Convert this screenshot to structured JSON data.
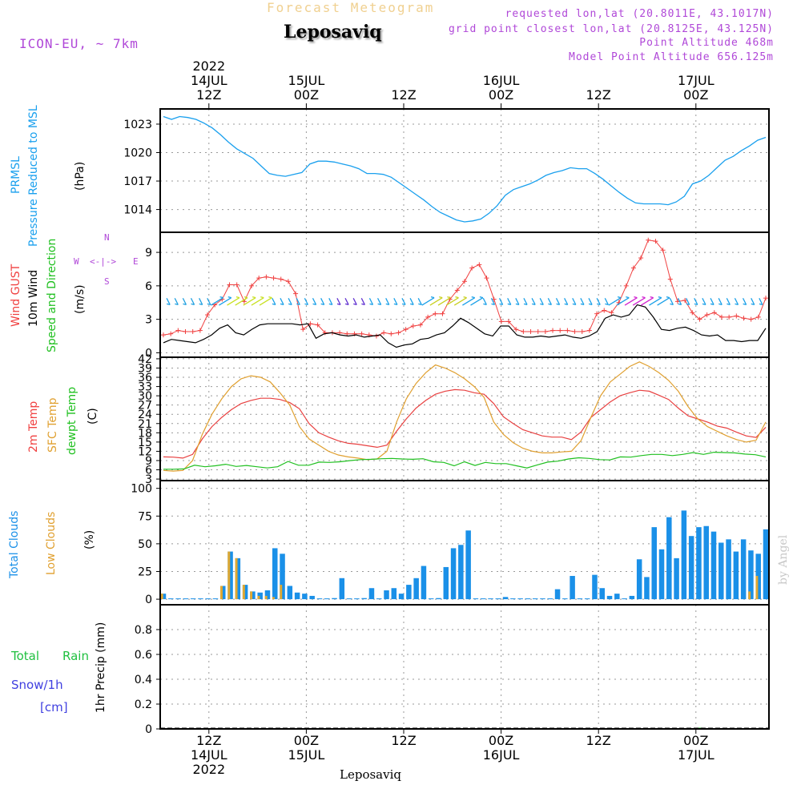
{
  "header": {
    "product_title": "Forecast Meteogram",
    "location": "Leposaviq",
    "model": "ICON-EU, ~ 7km",
    "requested": "requested lon,lat (20.8011E, 43.1017N)",
    "gridpoint": "grid point closest lon,lat (20.8125E, 43.125N)",
    "point_alt": "Point Altitude 468m",
    "model_alt": "Model Point Altitude 656.125m"
  },
  "footer": {
    "location": "Leposaviq"
  },
  "watermark": "by Angel",
  "time_axis": {
    "hours": 75,
    "hour_start": 6,
    "top_ticks": [
      {
        "h": 12,
        "lines": [
          "2022",
          "14JUL",
          "12Z"
        ]
      },
      {
        "h": 24,
        "lines": [
          "15JUL",
          "00Z"
        ]
      },
      {
        "h": 36,
        "lines": [
          "12Z"
        ]
      },
      {
        "h": 48,
        "lines": [
          "16JUL",
          "00Z"
        ]
      },
      {
        "h": 60,
        "lines": [
          "12Z"
        ]
      },
      {
        "h": 72,
        "lines": [
          "17JUL",
          "00Z"
        ]
      }
    ],
    "bottom_ticks": [
      {
        "h": 12,
        "lines": [
          "12Z",
          "14JUL",
          "2022"
        ]
      },
      {
        "h": 24,
        "lines": [
          "00Z",
          "15JUL"
        ]
      },
      {
        "h": 36,
        "lines": [
          "12Z"
        ]
      },
      {
        "h": 48,
        "lines": [
          "00Z",
          "16JUL"
        ]
      },
      {
        "h": 60,
        "lines": [
          "12Z"
        ]
      },
      {
        "h": 72,
        "lines": [
          "00Z",
          "17JUL"
        ]
      }
    ]
  },
  "panel_labels": {
    "pressure": [
      "PRMSL",
      "Pressure Reduced to MSL",
      "(hPa)"
    ],
    "wind": [
      "Wind GUST",
      "10m Wind",
      "Speed and Direction",
      "(m/s)"
    ],
    "compass": {
      "n": "N",
      "s": "S",
      "w": "W",
      "e": "E",
      "arrow": "<-|->"
    },
    "temp": [
      "2m Temp",
      "SFC Temp",
      "dewpt Temp",
      "(C)"
    ],
    "clouds": [
      "Total Clouds",
      "Low Clouds",
      "(%)"
    ],
    "precip": [
      "Total",
      "Rain",
      "Snow/1h",
      "[cm]",
      "1hr Precip (mm)"
    ]
  },
  "colors": {
    "pressure": "#1aa0ee",
    "gust": "#f04040",
    "wind": "#000000",
    "t2m": "#e84040",
    "tsfc": "#e0a030",
    "dewpt": "#20c020",
    "total_cloud": "#1a90e8",
    "low_cloud": "#e0a830",
    "total_label": "#20c040",
    "snow_label": "#4040e0"
  },
  "chart_data": [
    {
      "type": "line",
      "title": "PRMSL Pressure Reduced to MSL",
      "ylabel": "(hPa)",
      "yticks": [
        1014,
        1017,
        1020,
        1023
      ],
      "ylim": [
        1011.6,
        1024.6
      ],
      "series": [
        {
          "name": "PRMSL",
          "values": [
            1023.8,
            1023.5,
            1023.8,
            1023.7,
            1023.5,
            1023.1,
            1022.6,
            1021.9,
            1021.1,
            1020.4,
            1019.9,
            1019.4,
            1018.6,
            1017.8,
            1017.6,
            1017.5,
            1017.7,
            1017.9,
            1018.8,
            1019.1,
            1019.1,
            1019.0,
            1018.8,
            1018.6,
            1018.3,
            1017.8,
            1017.8,
            1017.7,
            1017.4,
            1016.8,
            1016.2,
            1015.6,
            1015.0,
            1014.3,
            1013.7,
            1013.3,
            1012.9,
            1012.7,
            1012.8,
            1013.0,
            1013.6,
            1014.4,
            1015.5,
            1016.1,
            1016.4,
            1016.7,
            1017.1,
            1017.6,
            1017.9,
            1018.1,
            1018.4,
            1018.3,
            1018.3,
            1017.8,
            1017.2,
            1016.5,
            1015.8,
            1015.2,
            1014.7,
            1014.6,
            1014.6,
            1014.6,
            1014.5,
            1014.8,
            1015.4,
            1016.7,
            1017.0,
            1017.6,
            1018.4,
            1019.2,
            1019.6,
            1020.2,
            1020.7,
            1021.3,
            1021.6
          ]
        }
      ]
    },
    {
      "type": "line",
      "title": "Wind GUST / 10m Wind Speed and Direction",
      "ylabel": "(m/s)",
      "yticks": [
        0,
        3,
        6,
        9
      ],
      "ylim": [
        -0.4,
        10.8
      ],
      "series": [
        {
          "name": "Wind GUST",
          "values": [
            1.6,
            1.7,
            2.0,
            1.9,
            1.9,
            2.0,
            3.4,
            4.3,
            4.8,
            6.1,
            6.1,
            4.6,
            6.0,
            6.7,
            6.8,
            6.7,
            6.6,
            6.4,
            5.3,
            2.1,
            2.6,
            2.5,
            1.8,
            1.8,
            1.8,
            1.7,
            1.7,
            1.7,
            1.6,
            1.5,
            1.8,
            1.7,
            1.8,
            2.1,
            2.4,
            2.5,
            3.2,
            3.5,
            3.5,
            4.8,
            5.6,
            6.4,
            7.6,
            7.9,
            6.7,
            4.8,
            2.8,
            2.8,
            2.1,
            1.9,
            1.9,
            1.9,
            1.9,
            2.0,
            2.0,
            2.0,
            1.9,
            1.9,
            2.0,
            3.5,
            3.8,
            3.6,
            4.5,
            6.0,
            7.6,
            8.5,
            10.1,
            10.0,
            9.2,
            6.6,
            4.6,
            4.7,
            3.6,
            3.0,
            3.4,
            3.6,
            3.2,
            3.2,
            3.3,
            3.1,
            3.0,
            3.2,
            4.9
          ]
        },
        {
          "name": "10m Wind",
          "values": [
            0.9,
            1.2,
            1.1,
            1.0,
            0.9,
            1.2,
            1.6,
            2.2,
            2.5,
            1.8,
            1.6,
            2.1,
            2.5,
            2.6,
            2.6,
            2.6,
            2.6,
            2.5,
            2.6,
            1.3,
            1.7,
            1.8,
            1.6,
            1.5,
            1.6,
            1.4,
            1.5,
            1.6,
            0.9,
            0.5,
            0.7,
            0.8,
            1.2,
            1.3,
            1.6,
            1.8,
            2.4,
            3.1,
            2.7,
            2.2,
            1.7,
            1.5,
            2.4,
            2.4,
            1.6,
            1.4,
            1.4,
            1.5,
            1.4,
            1.5,
            1.6,
            1.4,
            1.3,
            1.5,
            1.9,
            3.1,
            3.4,
            3.2,
            3.4,
            4.3,
            4.1,
            3.2,
            2.1,
            2.0,
            2.2,
            2.3,
            2.0,
            1.6,
            1.5,
            1.6,
            1.1,
            1.1,
            1.0,
            1.1,
            1.1,
            2.2
          ]
        }
      ]
    },
    {
      "type": "line",
      "title": "2m Temp / SFC Temp / dewpt Temp",
      "ylabel": "(C)",
      "yticks": [
        3,
        6,
        9,
        12,
        15,
        18,
        21,
        24,
        27,
        30,
        33,
        36,
        39,
        42
      ],
      "ylim": [
        2.5,
        42.5
      ],
      "series": [
        {
          "name": "2m Temp",
          "values": [
            10.2,
            10.1,
            9.8,
            11.0,
            16.0,
            20.0,
            23.0,
            25.5,
            27.5,
            28.5,
            29.2,
            29.2,
            28.8,
            27.8,
            25.8,
            21.0,
            18.0,
            16.6,
            15.4,
            14.6,
            14.3,
            13.8,
            13.3,
            14.0,
            18.5,
            22.5,
            26.0,
            28.5,
            30.5,
            31.5,
            32.0,
            31.8,
            31.0,
            30.5,
            27.5,
            23.2,
            21.0,
            19.0,
            18.0,
            17.0,
            16.6,
            16.6,
            15.8,
            18.3,
            23.0,
            25.5,
            28.0,
            30.0,
            31.0,
            31.8,
            31.5,
            30.2,
            28.8,
            26.0,
            23.5,
            22.5,
            21.5,
            20.2,
            19.5,
            18.2,
            17.0,
            16.5,
            19.8
          ]
        },
        {
          "name": "SFC Temp",
          "values": [
            5.8,
            5.6,
            5.8,
            9.0,
            17.5,
            24.0,
            29.0,
            33.0,
            35.5,
            36.5,
            36.0,
            34.5,
            31.0,
            27.0,
            20.0,
            16.0,
            14.0,
            12.0,
            10.8,
            10.2,
            9.8,
            9.3,
            9.5,
            12.0,
            21.5,
            29.0,
            34.0,
            37.5,
            40.0,
            39.0,
            37.5,
            35.5,
            33.0,
            29.5,
            21.5,
            17.5,
            14.8,
            13.0,
            12.0,
            11.5,
            11.5,
            11.8,
            12.0,
            15.5,
            23.0,
            30.0,
            34.5,
            37.0,
            39.5,
            41.0,
            39.5,
            37.5,
            35.0,
            31.5,
            26.5,
            22.5,
            20.0,
            18.5,
            17.0,
            15.8,
            15.0,
            15.6,
            21.5
          ]
        },
        {
          "name": "dewpt Temp",
          "values": [
            6.2,
            6.2,
            6.3,
            7.5,
            7.0,
            7.3,
            7.8,
            7.1,
            7.4,
            7.0,
            6.6,
            7.0,
            8.7,
            7.5,
            7.5,
            8.5,
            8.4,
            8.6,
            9.0,
            9.3,
            9.4,
            9.6,
            9.7,
            9.5,
            9.4,
            9.6,
            8.6,
            8.4,
            7.3,
            8.6,
            7.4,
            8.4,
            8.0,
            8.0,
            7.3,
            6.6,
            7.6,
            8.5,
            8.8,
            9.5,
            9.9,
            9.7,
            9.3,
            9.2,
            10.2,
            10.1,
            10.6,
            11.0,
            11.0,
            10.6,
            11.0,
            11.6,
            11.0,
            11.7,
            11.6,
            11.5,
            11.1,
            10.9,
            10.2
          ]
        }
      ]
    },
    {
      "type": "bar",
      "title": "Total Clouds / Low Clouds",
      "ylabel": "(%)",
      "yticks": [
        0,
        25,
        50,
        75,
        100
      ],
      "ylim": [
        -5,
        107
      ],
      "series": [
        {
          "name": "Total Clouds",
          "values": [
            5,
            0,
            0,
            0,
            0,
            0,
            0,
            0,
            12,
            43,
            37,
            13,
            7,
            6,
            8,
            46,
            41,
            12,
            6,
            5,
            3,
            0,
            0,
            1,
            19,
            0,
            0,
            1,
            10,
            0,
            8,
            10,
            5,
            13,
            19,
            30,
            0,
            1,
            29,
            46,
            49,
            62,
            0,
            0,
            0,
            0,
            2,
            0,
            0,
            0,
            0,
            0,
            0,
            9,
            0,
            21,
            0,
            0,
            22,
            10,
            3,
            5,
            0,
            3,
            36,
            20,
            65,
            45,
            74,
            37,
            80,
            57,
            65,
            66,
            61,
            51,
            54,
            43,
            54,
            44,
            41,
            63
          ]
        },
        {
          "name": "Low Clouds",
          "values": [
            5,
            0,
            0,
            0,
            0,
            0,
            0,
            0,
            12,
            43,
            37,
            13,
            7,
            3,
            3,
            2,
            13,
            0,
            0,
            0,
            0,
            0,
            0,
            0,
            0,
            0,
            0,
            0,
            0,
            0,
            0,
            0,
            0,
            0,
            0,
            0,
            0,
            0,
            0,
            0,
            0,
            0,
            0,
            0,
            0,
            0,
            0,
            0,
            0,
            0,
            0,
            0,
            0,
            0,
            0,
            0,
            0,
            0,
            0,
            0,
            0,
            0,
            0,
            0,
            0,
            0,
            0,
            0,
            0,
            0,
            0,
            0,
            0,
            0,
            0,
            0,
            0,
            0,
            0,
            7,
            21
          ]
        }
      ]
    },
    {
      "type": "bar",
      "title": "1hr Precip (mm)",
      "ylabel": "1hr Precip (mm)",
      "yticks": [
        0,
        0.2,
        0.4,
        0.6,
        0.8
      ],
      "ylim": [
        0,
        1.0
      ],
      "series": [
        {
          "name": "Total",
          "values": [
            0,
            0,
            0,
            0,
            0,
            0,
            0,
            0,
            0,
            0,
            0,
            0,
            0,
            0,
            0,
            0,
            0,
            0,
            0,
            0,
            0,
            0,
            0,
            0,
            0,
            0,
            0,
            0,
            0,
            0,
            0,
            0,
            0,
            0,
            0,
            0,
            0,
            0,
            0,
            0,
            0,
            0,
            0,
            0,
            0,
            0,
            0,
            0,
            0,
            0,
            0,
            0,
            0,
            0,
            0,
            0,
            0,
            0,
            0,
            0,
            0,
            0,
            0,
            0,
            0,
            0,
            0.01,
            0,
            0,
            0,
            0,
            0,
            0,
            0,
            0
          ]
        }
      ]
    }
  ]
}
